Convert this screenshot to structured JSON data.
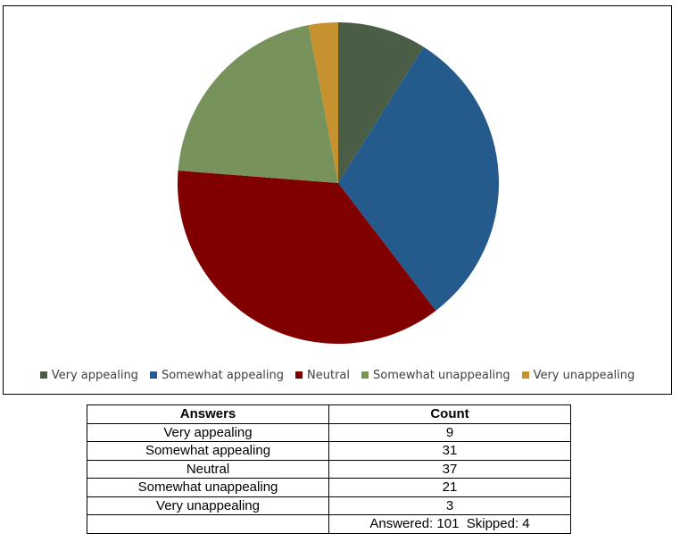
{
  "chart_data": {
    "type": "pie",
    "categories": [
      "Very appealing",
      "Somewhat appealing",
      "Neutral",
      "Somewhat unappealing",
      "Very unappealing"
    ],
    "values": [
      9,
      31,
      37,
      21,
      3
    ],
    "colors": [
      "#4a5e45",
      "#245a8c",
      "#800000",
      "#77925a",
      "#c6922f"
    ],
    "legend_position": "bottom",
    "start_angle": "12 o'clock",
    "direction": "clockwise"
  },
  "table": {
    "headers": [
      "Answers",
      "Count"
    ],
    "rows": [
      [
        "Very appealing",
        "9"
      ],
      [
        "Somewhat appealing",
        "31"
      ],
      [
        "Neutral",
        "37"
      ],
      [
        "Somewhat unappealing",
        "21"
      ],
      [
        "Very unappealing",
        "3"
      ]
    ],
    "footer": [
      "",
      "Answered: 101  Skipped: 4"
    ]
  }
}
